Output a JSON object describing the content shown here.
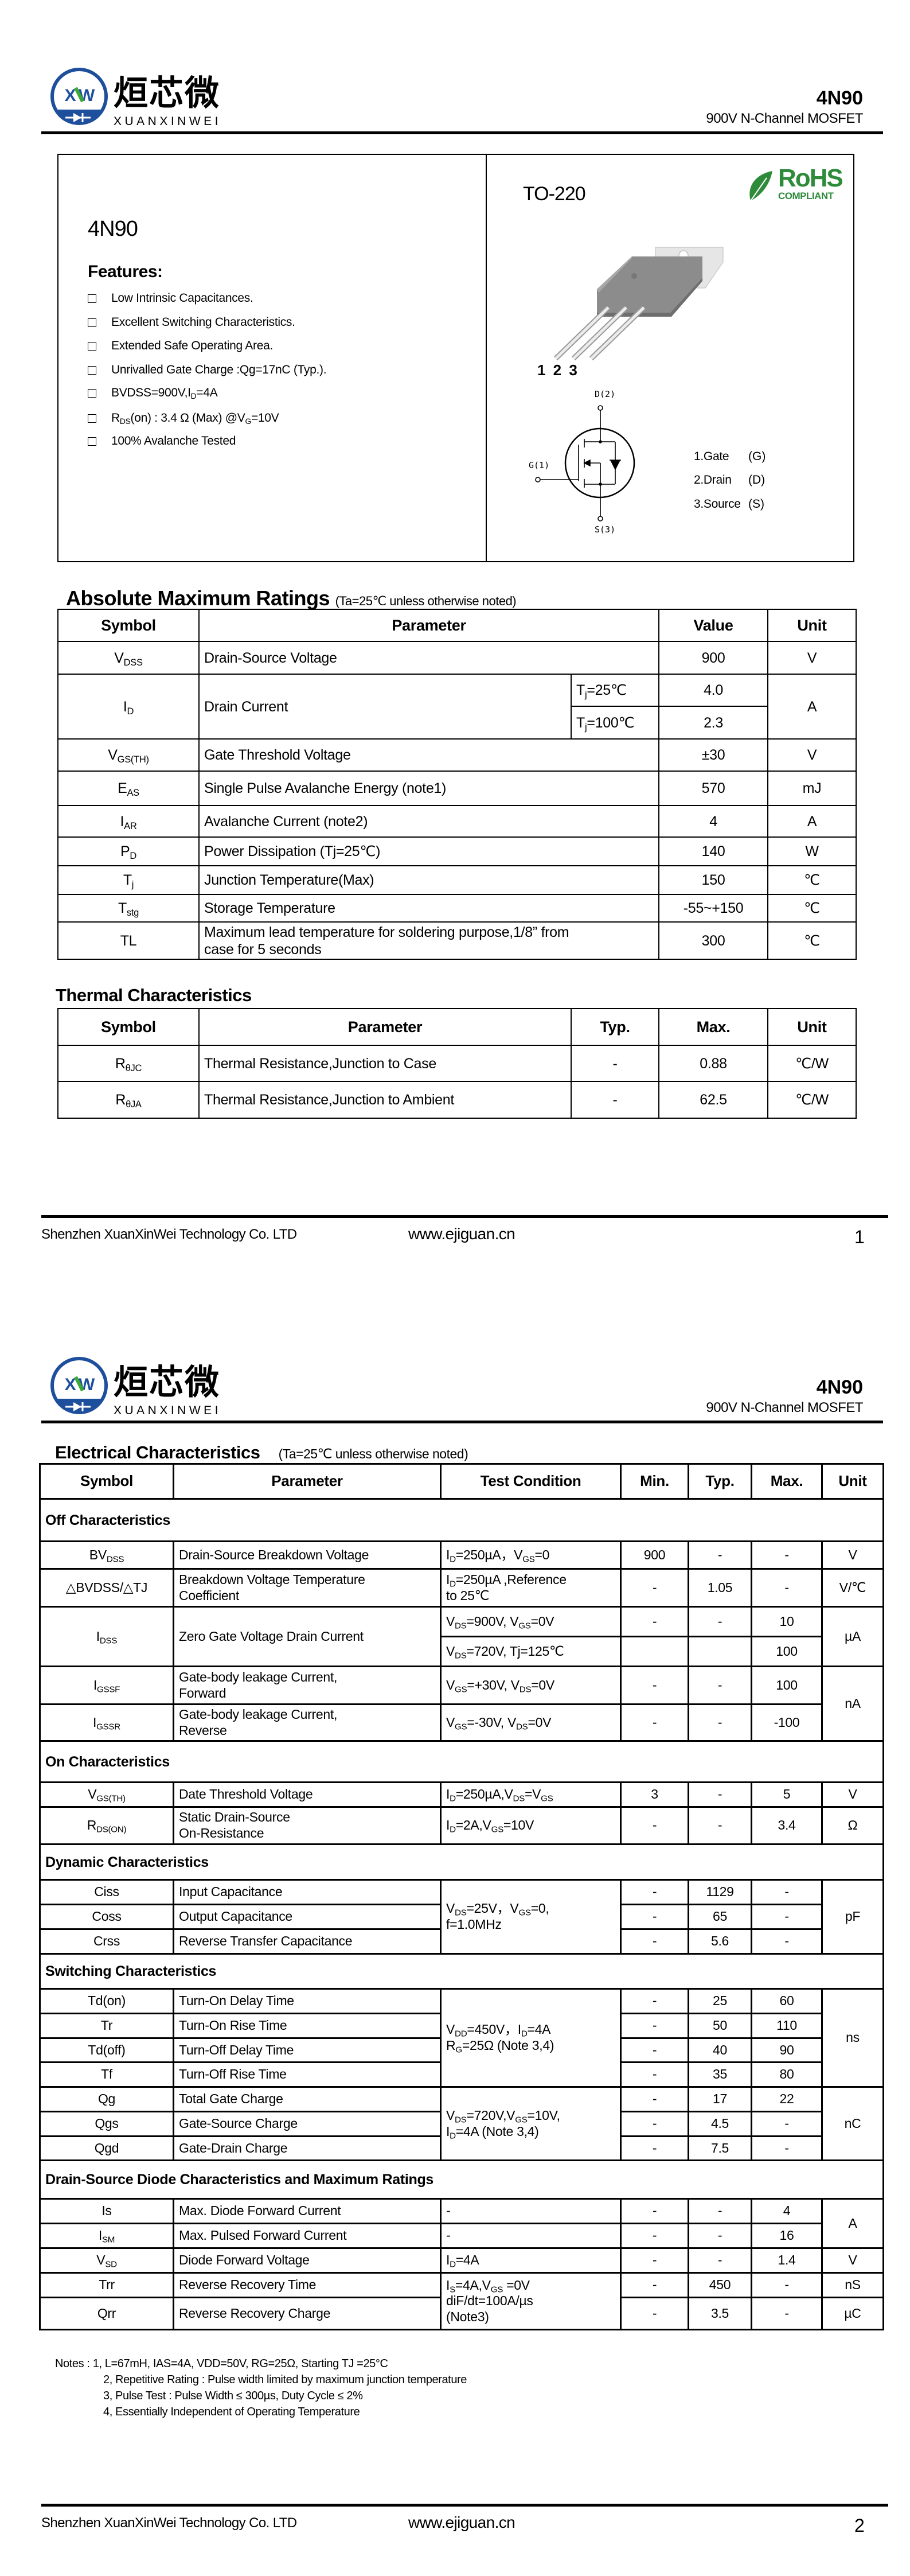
{
  "header": {
    "logo_cn": "烜芯微",
    "logo_en": "XUANXINWEI",
    "logo_mark": "XXW",
    "part_number": "4N90",
    "subtitle": "900V N-Channel MOSFET"
  },
  "footer": {
    "company": "Shenzhen XuanXinWei Technology Co. LTD",
    "url": "www.ejiguan.cn",
    "pages": [
      "1",
      "2"
    ]
  },
  "overview": {
    "part_number": "4N90",
    "features_title": "Features:",
    "features": [
      "Low Intrinsic Capacitances.",
      "Excellent Switching Characteristics.",
      "Extended Safe Operating Area.",
      "Unrivalled Gate Charge :Qg=17nC (Typ.).",
      [
        "BVDSS=900V,I",
        "D",
        "=4A"
      ],
      [
        "R",
        "DS",
        "(on) : 3.4 Ω (Max) @V",
        "G",
        "=10V"
      ],
      "100% Avalanche Tested"
    ],
    "package": "TO-220",
    "rohs": {
      "title": "RoHS",
      "subtitle": "COMPLIANT",
      "color": "#2e8b3a"
    },
    "pin_numbers": "1 2 3",
    "schematic_labels": {
      "drain": "D(2)",
      "gate": "G(1)",
      "source": "S(3)"
    },
    "pins": [
      {
        "label": "1.Gate",
        "code": "(G)"
      },
      {
        "label": "2.Drain",
        "code": "(D)"
      },
      {
        "label": "3.Source",
        "code": "(S)"
      }
    ]
  },
  "colors": {
    "logo_blue": "#1e4f9c",
    "logo_green": "#3aaa35",
    "rohs_green": "#2e8b3a"
  },
  "abs_max": {
    "title": "Absolute Maximum Ratings",
    "note": "(Ta=25℃ unless otherwise noted)",
    "header": [
      "Symbol",
      {
        "v": "Parameter",
        "cs": 2
      },
      "Value",
      "Unit"
    ],
    "rows": [
      [
        [
          "V",
          "DSS"
        ],
        {
          "v": "Drain-Source Voltage",
          "cs": 2
        },
        "900",
        "V"
      ],
      [
        {
          "v": [
            "I",
            "D"
          ],
          "rs": 2
        },
        {
          "v": "Drain Current",
          "rs": 2
        },
        [
          "T",
          "j",
          "=25℃"
        ],
        "4.0",
        {
          "v": "A",
          "rs": 2
        }
      ],
      [
        [
          "T",
          "j",
          "=100℃"
        ],
        "2.3"
      ],
      [
        [
          "V",
          "GS(TH)"
        ],
        {
          "v": "Gate Threshold Voltage",
          "cs": 2
        },
        "±30",
        "V"
      ],
      [
        [
          "E",
          "AS"
        ],
        {
          "v": "Single Pulse Avalanche Energy (note1)",
          "cs": 2
        },
        "570",
        "mJ"
      ],
      [
        [
          "I",
          "AR"
        ],
        {
          "v": "Avalanche Current (note2)",
          "cs": 2
        },
        "4",
        "A"
      ],
      [
        [
          "P",
          "D"
        ],
        {
          "v": "Power Dissipation (Tj=25℃)",
          "cs": 2
        },
        "140",
        "W"
      ],
      [
        [
          "T",
          "j"
        ],
        {
          "v": "Junction Temperature(Max)",
          "cs": 2
        },
        "150",
        "℃"
      ],
      [
        [
          "T",
          "stg"
        ],
        {
          "v": "Storage Temperature",
          "cs": 2
        },
        "-55~+150",
        "℃"
      ],
      [
        "TL",
        {
          "v": "Maximum lead temperature for soldering purpose,1/8” from\ncase for 5 seconds",
          "cs": 2
        },
        "300",
        "℃"
      ]
    ]
  },
  "thermal": {
    "title": "Thermal Characteristics",
    "header": [
      "Symbol",
      "Parameter",
      "Typ.",
      "Max.",
      "Unit"
    ],
    "rows": [
      [
        [
          "R",
          "θJC"
        ],
        "Thermal Resistance,Junction to Case",
        "-",
        "0.88",
        "℃/W"
      ],
      [
        [
          "R",
          "θJA"
        ],
        "Thermal Resistance,Junction to Ambient",
        "-",
        "62.5",
        "℃/W"
      ]
    ]
  },
  "electrical": {
    "title": "Electrical Characteristics",
    "note": "(Ta=25℃ unless otherwise noted)",
    "header": [
      "Symbol",
      "Parameter",
      "Test Condition",
      "Min.",
      "Typ.",
      "Max.",
      "Unit"
    ],
    "rows": [
      {
        "section": "Off Characteristics"
      },
      [
        [
          "BV",
          "DSS"
        ],
        "Drain-Source Breakdown Voltage",
        [
          "I",
          "D",
          "=250µA，V",
          "GS",
          "=0"
        ],
        "900",
        "-",
        "-",
        "V"
      ],
      [
        "△BVDSS/△TJ",
        "Breakdown Voltage Temperature\nCoefficient",
        [
          "I",
          "D",
          "=250µA ,Reference\n  to 25℃"
        ],
        "-",
        "1.05",
        "-",
        "V/℃"
      ],
      [
        {
          "v": [
            "I",
            "DSS"
          ],
          "rs": 2
        },
        {
          "v": "Zero Gate Voltage Drain Current",
          "rs": 2
        },
        [
          "V",
          "DS",
          "=900V, V",
          "GS",
          "=0V"
        ],
        "-",
        "-",
        "10",
        {
          "v": "µA",
          "rs": 2
        }
      ],
      [
        [
          "V",
          "DS",
          "=720V, Tj=125℃"
        ],
        "",
        "",
        "100"
      ],
      [
        [
          "I",
          "GSSF"
        ],
        "Gate-body leakage Current,\nForward",
        [
          "V",
          "GS",
          "=+30V, V",
          "DS",
          "=0V"
        ],
        "-",
        "-",
        "100",
        {
          "v": "nA",
          "rs": 2
        }
      ],
      [
        [
          "I",
          "GSSR"
        ],
        "Gate-body leakage Current,\nReverse",
        [
          "V",
          "GS",
          "=-30V, V",
          "DS",
          "=0V"
        ],
        "-",
        "-",
        "-100"
      ],
      {
        "section": "On Characteristics"
      },
      [
        [
          "V",
          "GS(TH)"
        ],
        "Date Threshold Voltage",
        [
          "I",
          "D",
          "=250µA,V",
          "DS",
          "=V",
          "GS"
        ],
        "3",
        "-",
        "5",
        "V"
      ],
      [
        [
          "R",
          "DS(ON)"
        ],
        "Static Drain-Source\nOn-Resistance",
        [
          "I",
          "D",
          "=2A,V",
          "GS",
          "=10V"
        ],
        "-",
        "-",
        "3.4",
        "Ω"
      ],
      {
        "section": "Dynamic Characteristics"
      },
      [
        "Ciss",
        "Input Capacitance",
        {
          "v": [
            "V",
            "DS",
            "=25V，V",
            "GS",
            "=0,\nf=1.0MHz"
          ],
          "rs": 3
        },
        "-",
        "1129",
        "-",
        {
          "v": "pF",
          "rs": 3
        }
      ],
      [
        "Coss",
        "Output Capacitance",
        "-",
        "65",
        "-"
      ],
      [
        "Crss",
        "Reverse Transfer Capacitance",
        "-",
        "5.6",
        "-"
      ],
      {
        "section": "Switching Characteristics"
      },
      [
        "Td(on)",
        "Turn-On Delay Time",
        {
          "v": [
            "V",
            "DD",
            "=450V，I",
            "D",
            "=4A\nR",
            "G",
            "=25Ω (Note 3,4)"
          ],
          "rs": 4
        },
        "-",
        "25",
        "60",
        {
          "v": "ns",
          "rs": 4
        }
      ],
      [
        "Tr",
        "Turn-On Rise Time",
        "-",
        "50",
        "110"
      ],
      [
        "Td(off)",
        "Turn-Off Delay Time",
        "-",
        "40",
        "90"
      ],
      [
        "Tf",
        "Turn-Off Rise Time",
        "-",
        "35",
        "80"
      ],
      [
        "Qg",
        "Total Gate Charge",
        {
          "v": [
            "V",
            "DS",
            "=720V,V",
            "GS",
            "=10V,\nI",
            "D",
            "=4A (Note 3,4)"
          ],
          "rs": 3
        },
        "-",
        "17",
        "22",
        {
          "v": "nC",
          "rs": 3
        }
      ],
      [
        "Qgs",
        "Gate-Source Charge",
        "-",
        "4.5",
        "-"
      ],
      [
        "Qgd",
        "Gate-Drain Charge",
        "-",
        "7.5",
        "-"
      ],
      {
        "section": "Drain-Source Diode Characteristics and Maximum Ratings"
      },
      [
        "Is",
        "Max. Diode Forward Current",
        "-",
        "-",
        "-",
        "4",
        {
          "v": "A",
          "rs": 2
        }
      ],
      [
        [
          "I",
          "SM"
        ],
        "Max. Pulsed Forward Current",
        "-",
        "-",
        "-",
        "16"
      ],
      [
        [
          "V",
          "SD"
        ],
        "Diode Forward Voltage",
        [
          "I",
          "D",
          "=4A"
        ],
        "-",
        "-",
        "1.4",
        "V"
      ],
      [
        "Trr",
        "Reverse Recovery Time",
        {
          "v": [
            "I",
            "S",
            "=4A,V",
            "GS",
            " =0V\ndiF/dt=100A/µs\n(Note3)"
          ],
          "rs": 2
        },
        "-",
        "450",
        "-",
        "nS"
      ],
      [
        "Qrr",
        "Reverse Recovery Charge",
        "-",
        "3.5",
        "-",
        "µC"
      ]
    ]
  },
  "notes": {
    "label": "Notes : ",
    "items": [
      "1, L=67mH, IAS=4A, VDD=50V, RG=25Ω, Starting TJ =25°C",
      "2, Repetitive Rating : Pulse width limited by maximum junction temperature",
      "3, Pulse Test : Pulse Width ≤ 300µs, Duty Cycle ≤ 2%",
      "4, Essentially Independent of Operating Temperature"
    ]
  }
}
